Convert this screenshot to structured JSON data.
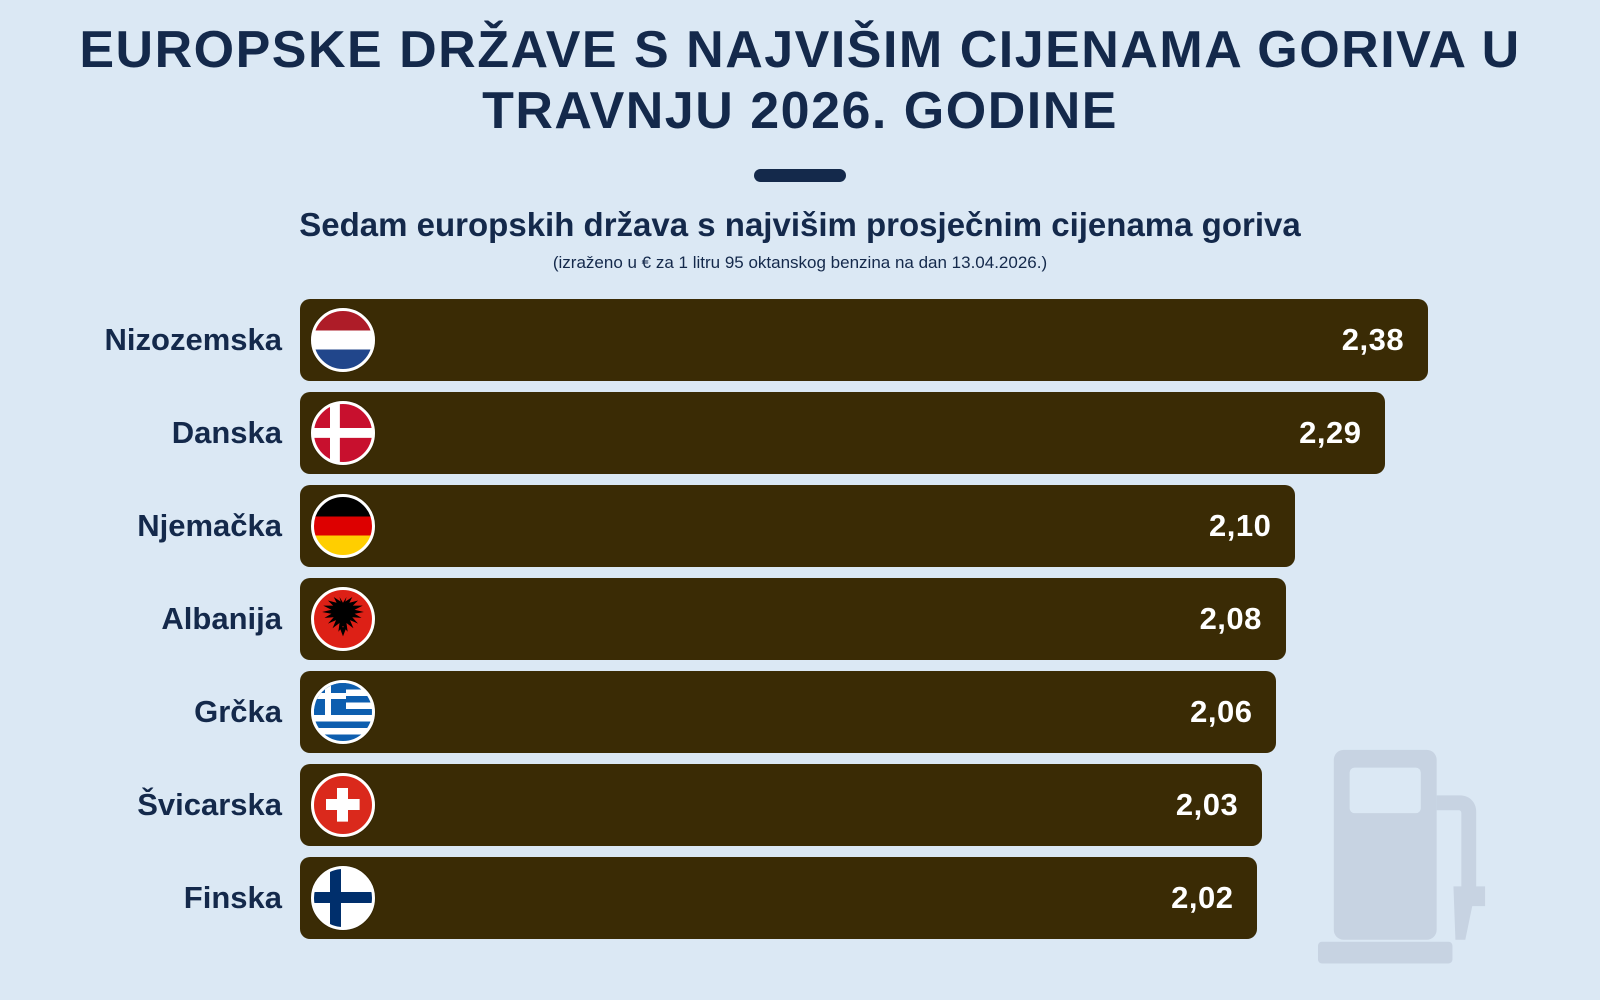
{
  "chart_data": {
    "type": "bar",
    "orientation": "horizontal",
    "title": "EUROPSKE DRŽAVE S NAJVIŠIM CIJENAMA GORIVA U TRAVNJU 2026. GODINE",
    "subtitle": "Sedam europskih država s najvišim prosječnim cijenama goriva",
    "note": "(izraženo u € za 1 litru 95 oktanskog benzina na dan 13.04.2026.)",
    "categories": [
      "Nizozemska",
      "Danska",
      "Njemačka",
      "Albanija",
      "Grčka",
      "Švicarska",
      "Finska"
    ],
    "values": [
      2.38,
      2.29,
      2.1,
      2.08,
      2.06,
      2.03,
      2.02
    ],
    "value_labels": [
      "2,38",
      "2,29",
      "2,10",
      "2,08",
      "2,06",
      "2,03",
      "2,02"
    ],
    "flags": [
      {
        "code": "nl",
        "icon": "netherlands-flag-icon"
      },
      {
        "code": "dk",
        "icon": "denmark-flag-icon"
      },
      {
        "code": "de",
        "icon": "germany-flag-icon"
      },
      {
        "code": "al",
        "icon": "albania-flag-icon"
      },
      {
        "code": "gr",
        "icon": "greece-flag-icon"
      },
      {
        "code": "ch",
        "icon": "switzerland-flag-icon"
      },
      {
        "code": "fi",
        "icon": "finland-flag-icon"
      }
    ],
    "xlim": [
      0,
      2.5
    ],
    "grid": false,
    "legend": "none",
    "bar_color": "#3a2b05",
    "value_color": "#ffffff",
    "label_color": "#14294b",
    "background_color": "#dbe8f4",
    "title_color": "#14294b"
  }
}
